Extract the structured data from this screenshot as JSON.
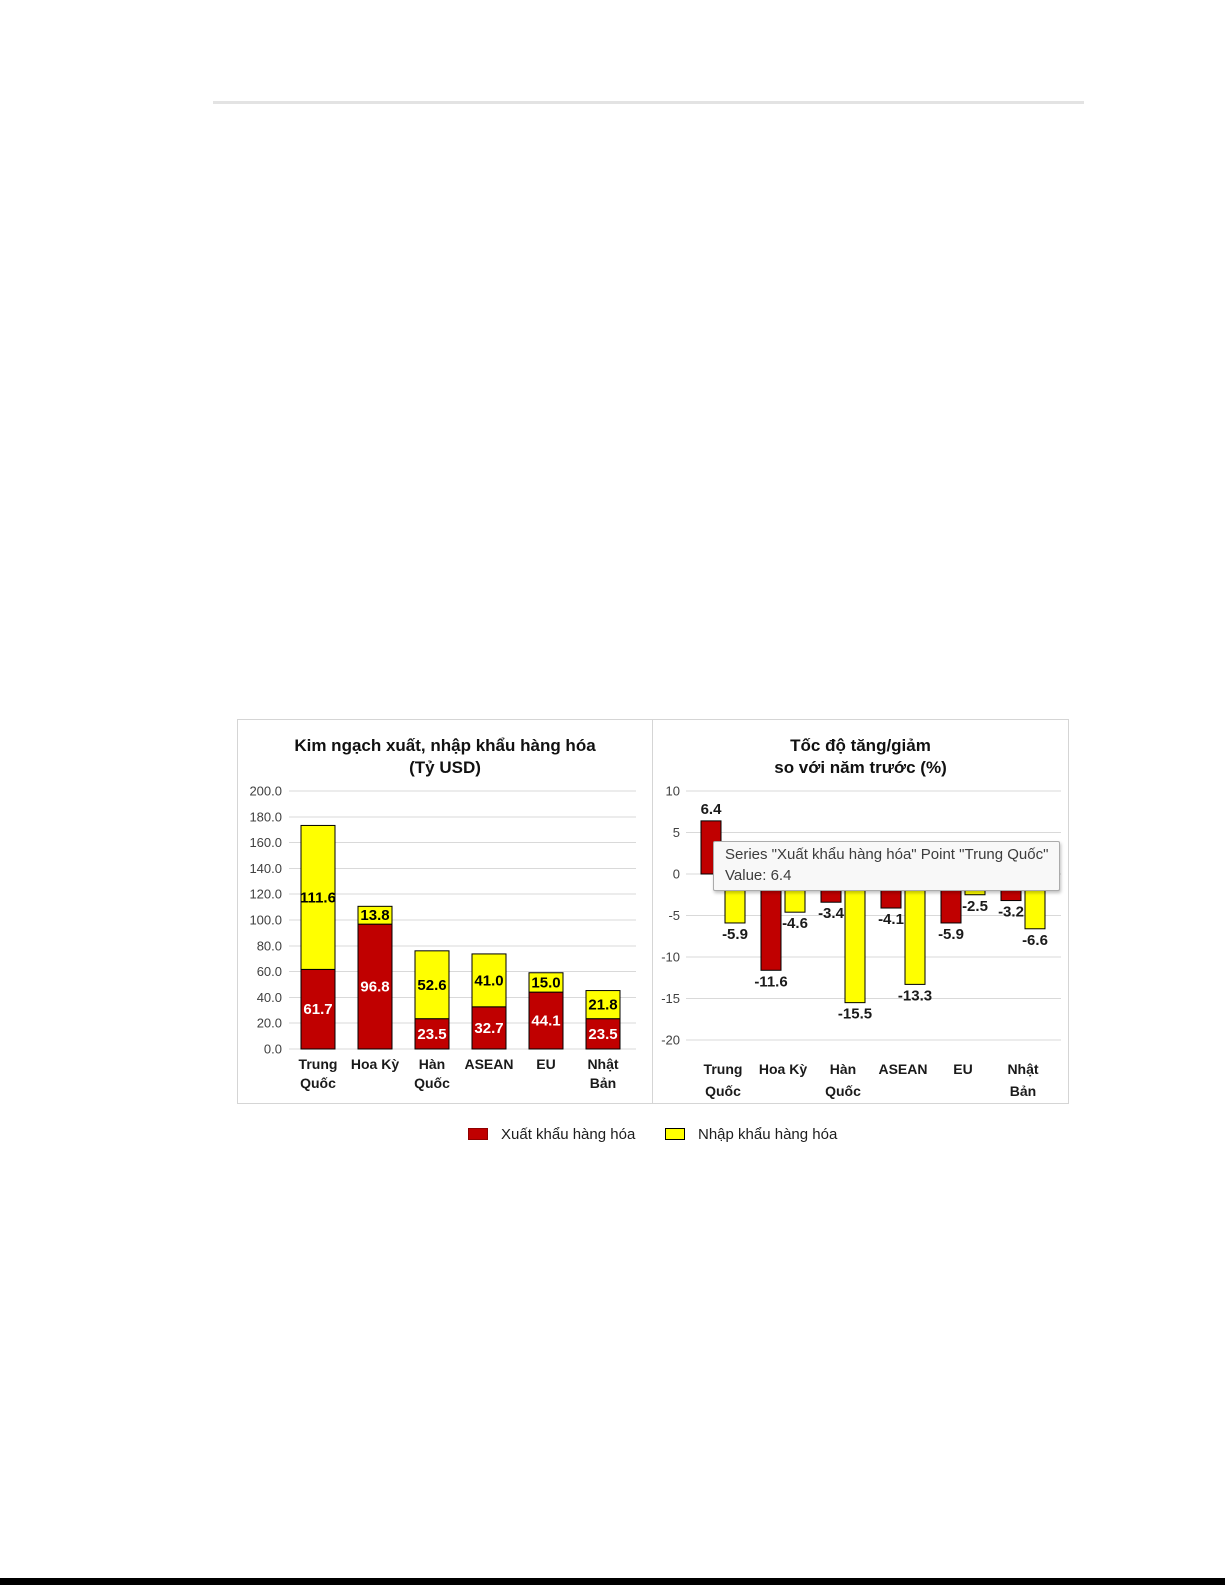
{
  "colors": {
    "export_red": "#C00000",
    "import_yellow": "#FFFF00",
    "bar_border": "#000000",
    "gridline": "#D9D9D9",
    "panel_border": "#D5D5D5",
    "axis_text": "#404040",
    "category_text": "#1A1A1A",
    "red_label_text": "#FFFFFF",
    "tooltip_background": "#F8F8F8",
    "tooltip_border": "#ABABAB",
    "tooltip_text": "#3C3C3C"
  },
  "tooltip": {
    "line1": "Series \"Xuất khẩu hàng hóa\" Point \"Trung Quốc\"",
    "line2": "Value: 6.4"
  },
  "legend": {
    "items": [
      {
        "label": "Xuất khẩu hàng hóa",
        "color": "#C00000"
      },
      {
        "label": "Nhập khẩu hàng hóa",
        "color": "#FFFF00"
      }
    ]
  },
  "chart_data": [
    {
      "type": "bar",
      "stacked": true,
      "title": [
        "Kim ngạch xuất, nhập khẩu hàng hóa",
        "(Tỷ USD)"
      ],
      "categories": [
        [
          "Trung",
          "Quốc"
        ],
        [
          "Hoa Kỳ"
        ],
        [
          "Hàn",
          "Quốc"
        ],
        [
          "ASEAN"
        ],
        [
          "EU"
        ],
        [
          "Nhật",
          "Bản"
        ]
      ],
      "series": [
        {
          "name": "Xuất khẩu hàng hóa",
          "color": "#C00000",
          "label_color": "#FFFFFF",
          "values": [
            61.7,
            96.8,
            23.5,
            32.7,
            44.1,
            23.5
          ]
        },
        {
          "name": "Nhập khẩu hàng hóa",
          "color": "#FFFF00",
          "label_color": "#000000",
          "values": [
            111.6,
            13.8,
            52.6,
            41.0,
            15.0,
            21.8
          ]
        }
      ],
      "ylabel": "",
      "xlabel": "",
      "ylim": [
        0,
        200
      ],
      "y_ticks": [
        "0.0",
        "20.0",
        "40.0",
        "60.0",
        "80.0",
        "100.0",
        "120.0",
        "140.0",
        "160.0",
        "180.0",
        "200.0"
      ],
      "grid": true,
      "legend_position": "bottom"
    },
    {
      "type": "bar",
      "stacked": false,
      "title": [
        "Tốc độ tăng/giảm",
        "so với năm trước (%)"
      ],
      "categories": [
        [
          "Trung",
          "Quốc"
        ],
        [
          "Hoa Kỳ"
        ],
        [
          "Hàn",
          "Quốc"
        ],
        [
          "ASEAN"
        ],
        [
          "EU"
        ],
        [
          "Nhật",
          "Bản"
        ]
      ],
      "series": [
        {
          "name": "Xuất khẩu hàng hóa",
          "color": "#C00000",
          "label_color": "#1A1A1A",
          "values": [
            6.4,
            -11.6,
            -3.4,
            -4.1,
            -5.9,
            -3.2
          ]
        },
        {
          "name": "Nhập khẩu hàng hóa",
          "color": "#FFFF00",
          "label_color": "#1A1A1A",
          "values": [
            -5.9,
            -4.6,
            -15.5,
            -13.3,
            -2.5,
            -6.6
          ]
        }
      ],
      "ylabel": "",
      "xlabel": "",
      "ylim": [
        -20,
        10
      ],
      "y_ticks": [
        "10",
        "5",
        "0",
        "-5",
        "-10",
        "-15",
        "-20"
      ],
      "grid": true,
      "legend_position": "bottom"
    }
  ]
}
